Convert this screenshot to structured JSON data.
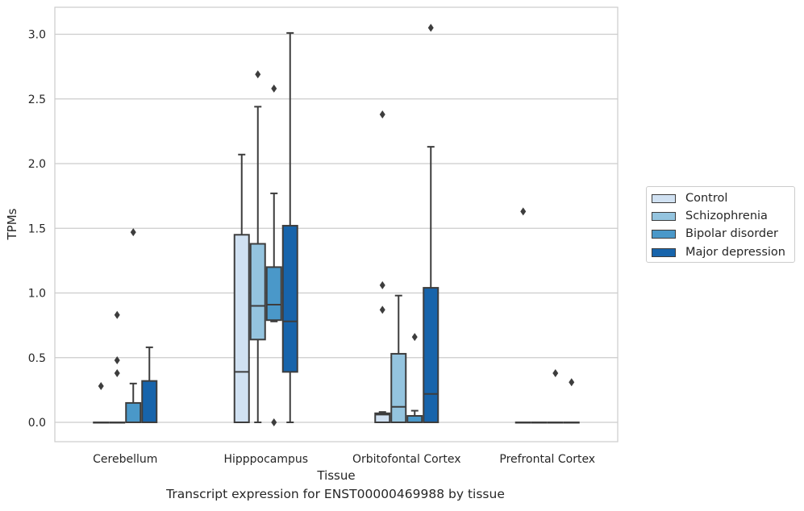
{
  "chart_data": {
    "type": "box",
    "caption": "Transcript expression for ENST00000469988 by tissue",
    "xlabel": "Tissue",
    "ylabel": "TPMs",
    "ylim": [
      -0.15,
      3.2
    ],
    "yticks": [
      0.0,
      0.5,
      1.0,
      1.5,
      2.0,
      2.5,
      3.0
    ],
    "ytick_labels": [
      "0.0",
      "0.5",
      "1.0",
      "1.5",
      "2.0",
      "2.5",
      "3.0"
    ],
    "categories": [
      "Cerebellum",
      "Hipppocampus",
      "Orbitofontal Cortex",
      "Prefrontal Cortex"
    ],
    "grid": "horizontal",
    "legend_position": "right",
    "series": [
      {
        "name": "Control",
        "color": "#d0e1f2",
        "boxes": [
          {
            "q1": 0,
            "median": 0,
            "q3": 0,
            "whisker_low": 0,
            "whisker_high": 0,
            "outliers": [
              0.28
            ]
          },
          {
            "q1": 0,
            "median": 0.39,
            "q3": 1.45,
            "whisker_low": 0,
            "whisker_high": 2.07,
            "outliers": []
          },
          {
            "q1": 0,
            "median": 0.06,
            "q3": 0.07,
            "whisker_low": 0,
            "whisker_high": 0.08,
            "outliers": [
              0.87,
              1.06,
              2.38
            ]
          },
          {
            "q1": 0,
            "median": 0,
            "q3": 0,
            "whisker_low": 0,
            "whisker_high": 0,
            "outliers": [
              1.63
            ]
          }
        ]
      },
      {
        "name": "Schizophrenia",
        "color": "#94c4df",
        "boxes": [
          {
            "q1": 0,
            "median": 0,
            "q3": 0,
            "whisker_low": 0,
            "whisker_high": 0,
            "outliers": [
              0.38,
              0.48,
              0.83
            ]
          },
          {
            "q1": 0.64,
            "median": 0.9,
            "q3": 1.38,
            "whisker_low": 0,
            "whisker_high": 2.44,
            "outliers": [
              2.69
            ]
          },
          {
            "q1": 0,
            "median": 0.12,
            "q3": 0.53,
            "whisker_low": 0,
            "whisker_high": 0.98,
            "outliers": []
          },
          {
            "q1": 0,
            "median": 0,
            "q3": 0,
            "whisker_low": 0,
            "whisker_high": 0,
            "outliers": []
          }
        ]
      },
      {
        "name": "Bipolar disorder",
        "color": "#4a98c9",
        "boxes": [
          {
            "q1": 0,
            "median": 0,
            "q3": 0.15,
            "whisker_low": 0,
            "whisker_high": 0.3,
            "outliers": [
              1.47
            ]
          },
          {
            "q1": 0.79,
            "median": 0.91,
            "q3": 1.2,
            "whisker_low": 0.78,
            "whisker_high": 1.77,
            "outliers": [
              0.0,
              2.58
            ]
          },
          {
            "q1": 0,
            "median": 0.05,
            "q3": 0.05,
            "whisker_low": 0,
            "whisker_high": 0.09,
            "outliers": [
              0.66
            ]
          },
          {
            "q1": 0,
            "median": 0,
            "q3": 0,
            "whisker_low": 0,
            "whisker_high": 0,
            "outliers": [
              0.38
            ]
          }
        ]
      },
      {
        "name": "Major depression",
        "color": "#1764ab",
        "boxes": [
          {
            "q1": 0,
            "median": 0,
            "q3": 0.32,
            "whisker_low": 0,
            "whisker_high": 0.58,
            "outliers": []
          },
          {
            "q1": 0.39,
            "median": 0.78,
            "q3": 1.52,
            "whisker_low": 0,
            "whisker_high": 3.01,
            "outliers": []
          },
          {
            "q1": 0,
            "median": 0.22,
            "q3": 1.04,
            "whisker_low": 0,
            "whisker_high": 2.13,
            "outliers": [
              3.05
            ]
          },
          {
            "q1": 0,
            "median": 0,
            "q3": 0,
            "whisker_low": 0,
            "whisker_high": 0,
            "outliers": [
              0.31
            ]
          }
        ]
      }
    ]
  }
}
